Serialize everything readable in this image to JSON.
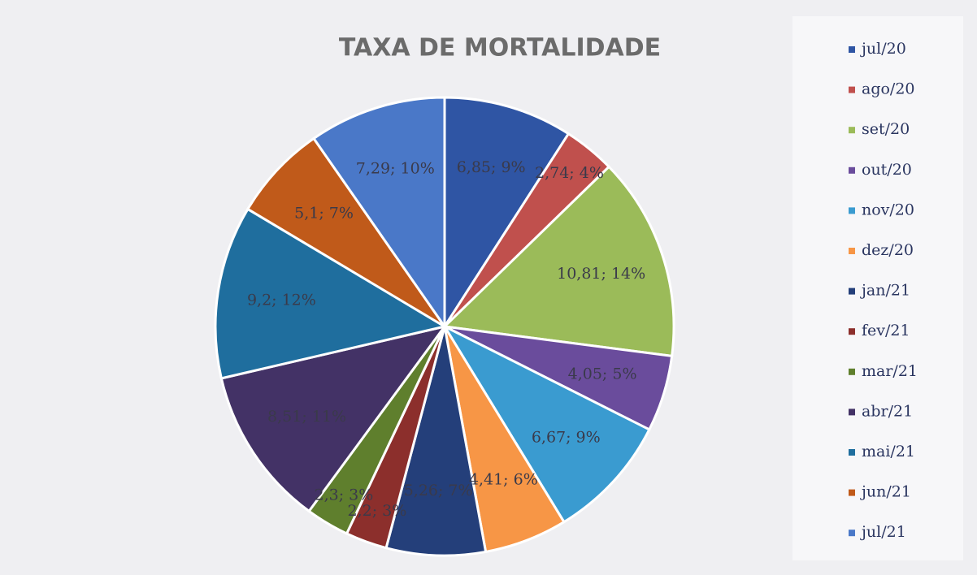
{
  "chart_data": {
    "type": "pie",
    "title": "TAXA DE MORTALIDADE",
    "categories": [
      "jul/20",
      "ago/20",
      "set/20",
      "out/20",
      "nov/20",
      "dez/20",
      "jan/21",
      "fev/21",
      "mar/21",
      "abr/21",
      "mai/21",
      "jun/21",
      "jul/21"
    ],
    "values": [
      6.85,
      2.74,
      10.81,
      4.05,
      6.67,
      4.41,
      5.26,
      2.2,
      2.3,
      8.51,
      9.2,
      5.1,
      7.29
    ],
    "value_labels": [
      "6,85; 9%",
      "2,74; 4%",
      "10,81; 14%",
      "4,05; 5%",
      "6,67; 9%",
      "4,41; 6%",
      "5,26; 7%",
      "2,2; 3%",
      "2,3; 3%",
      "8,51; 11%",
      "9,2; 12%",
      "5,1; 7%",
      "7,29; 10%"
    ],
    "colors": [
      "#2f55a4",
      "#c0504d",
      "#9bbb59",
      "#6a4c9c",
      "#3a9bd0",
      "#f79646",
      "#243f7a",
      "#8c2f2c",
      "#5f7f2d",
      "#433266",
      "#1f6e9e",
      "#c05a1a",
      "#4a78c8"
    ],
    "legend": "right"
  }
}
